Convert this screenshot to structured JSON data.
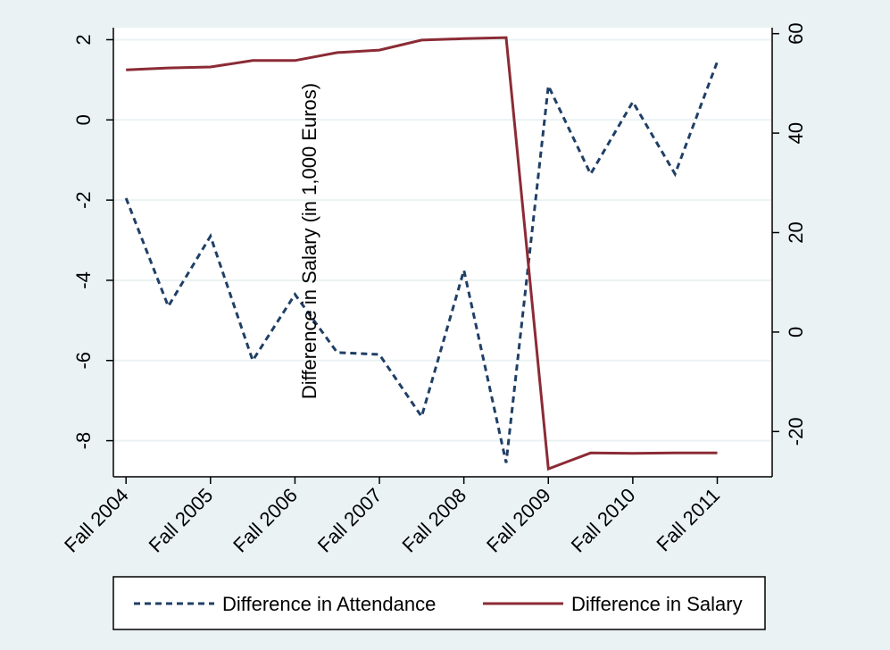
{
  "chart_data": {
    "type": "line",
    "title": "",
    "xlabel": "",
    "ylabel_left": "",
    "ylabel_right": "Difference in Salary (in 1,000 Euros)",
    "x_tick_labels": [
      "Fall 2004",
      "Fall 2005",
      "Fall 2006",
      "Fall 2007",
      "Fall 2008",
      "Fall 2009",
      "Fall 2010",
      "Fall 2011"
    ],
    "x_tick_positions": [
      0,
      2,
      4,
      6,
      8,
      10,
      12,
      14
    ],
    "xlim": [
      -0.3,
      15.3
    ],
    "y_left_ticks": [
      2,
      0,
      -2,
      -4,
      -6,
      -8
    ],
    "y_left_tick_labels": [
      "2",
      "0",
      "-2",
      "-4",
      "-6",
      "-8"
    ],
    "y_left_lim": [
      -8.9,
      2.3
    ],
    "y_right_ticks": [
      60,
      40,
      20,
      0,
      -20
    ],
    "y_right_tick_labels": [
      "60",
      "40",
      "20",
      "0",
      "-20"
    ],
    "y_right_lim": [
      -29.1,
      61.2
    ],
    "grid": true,
    "legend_position": "bottom",
    "series": [
      {
        "name": "Difference in Attendance",
        "axis": "left",
        "style": "dashed",
        "color": "#1f3f66",
        "x": [
          0,
          1,
          2,
          3,
          4,
          5,
          6,
          7,
          8,
          9,
          10,
          11,
          12,
          13,
          14
        ],
        "values": [
          -1.95,
          -4.65,
          -2.9,
          -6,
          -4.35,
          -5.8,
          -5.85,
          -7.4,
          -3.75,
          -8.55,
          0.85,
          -1.35,
          0.45,
          -1.35,
          1.45
        ]
      },
      {
        "name": "Difference in Salary",
        "axis": "right",
        "style": "solid",
        "color": "#8b2b35",
        "x": [
          0,
          1,
          2,
          3,
          4,
          5,
          6,
          7,
          8,
          9,
          10,
          11,
          12,
          13,
          14
        ],
        "values": [
          52.7,
          53.1,
          53.3,
          54.6,
          54.6,
          56.2,
          56.7,
          58.7,
          59.0,
          59.2,
          -27.5,
          -24.3,
          -24.4,
          -24.3,
          -24.3
        ]
      }
    ]
  }
}
